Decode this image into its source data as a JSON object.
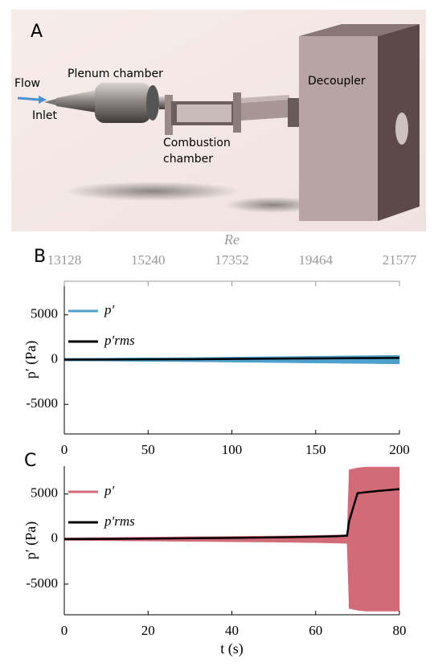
{
  "panel_labels": [
    "A",
    "B",
    "C"
  ],
  "diagram": {
    "labels": [
      "Flow",
      "Inlet",
      "Plenum chamber",
      "Combustion",
      "chamber",
      "Decoupler"
    ]
  },
  "chart_data": [
    {
      "type": "band-line",
      "panel": "B",
      "ylabel": "p′ (Pa)",
      "x": [
        0,
        25,
        50,
        75,
        100,
        125,
        150,
        175,
        200
      ],
      "xlim": [
        0,
        200
      ],
      "xticks": [
        0,
        50,
        100,
        150,
        200
      ],
      "x2label": "Re",
      "x2lim": [
        13128,
        21577
      ],
      "x2ticks": [
        13128,
        15240,
        17352,
        19464,
        21577
      ],
      "ylim": [
        -8300,
        8300
      ],
      "yticks": [
        5000,
        0,
        -5000
      ],
      "series": [
        {
          "name": "p′",
          "color": "#4d9fcc",
          "style": "band",
          "values": [
            150,
            170,
            200,
            230,
            280,
            330,
            380,
            430,
            480
          ]
        },
        {
          "name": "p′rms",
          "color": "#000000",
          "style": "line",
          "values": [
            0,
            10,
            30,
            50,
            80,
            110,
            140,
            170,
            190
          ]
        }
      ]
    },
    {
      "type": "band-line",
      "panel": "C",
      "ylabel": "p′ (Pa)",
      "xlabel": "t (s)",
      "x": [
        0,
        10,
        20,
        30,
        40,
        50,
        60,
        65,
        67.5,
        68,
        70,
        72,
        75,
        80
      ],
      "xlim": [
        0,
        80
      ],
      "xticks": [
        0,
        20,
        40,
        60,
        80
      ],
      "ylim": [
        -8400,
        8100
      ],
      "yticks": [
        5000,
        0,
        -5000
      ],
      "series": [
        {
          "name": "p′",
          "color": "#d26b78",
          "style": "band",
          "values": [
            150,
            180,
            220,
            260,
            300,
            340,
            400,
            450,
            480,
            7700,
            7900,
            8000,
            8000,
            8000
          ]
        },
        {
          "name": "p′rms",
          "color": "#000000",
          "style": "line",
          "values": [
            0,
            20,
            50,
            90,
            130,
            180,
            260,
            320,
            380,
            2000,
            5100,
            5200,
            5350,
            5550
          ]
        }
      ]
    }
  ]
}
